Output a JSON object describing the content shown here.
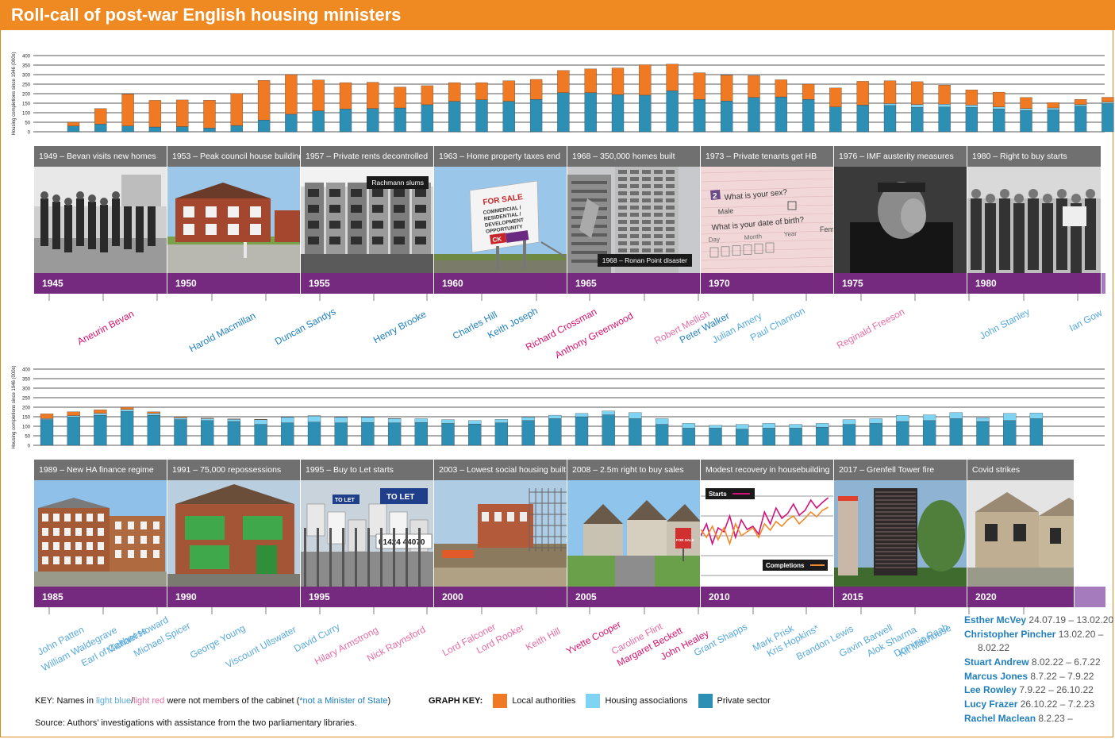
{
  "title": "Roll-call of post-war English housing ministers",
  "colors": {
    "la": "#f07a24",
    "ha": "#7fd3f3",
    "private": "#2e8fb5",
    "purple": "#762a7f",
    "purple_light": "#a67bbd",
    "caption": "#707070",
    "orange": "#ef8a22"
  },
  "ylabel": "Housing completions since 1946 (000s)",
  "chart_data": [
    {
      "type": "bar",
      "stacked": true,
      "ylim": [
        0,
        400
      ],
      "yticks": [
        "0",
        "50",
        "100",
        "150",
        "200",
        "250",
        "300",
        "350",
        "400"
      ],
      "categories": [
        "1946",
        "1947",
        "1948",
        "1949",
        "1950",
        "1951",
        "1952",
        "1953",
        "1954",
        "1955",
        "1956",
        "1957",
        "1958",
        "1959",
        "1960",
        "1961",
        "1962",
        "1963",
        "1964",
        "1965",
        "1966",
        "1967",
        "1968",
        "1969",
        "1970",
        "1971",
        "1972",
        "1973",
        "1974",
        "1975",
        "1976",
        "1977",
        "1978",
        "1979",
        "1980",
        "1981",
        "1982",
        "1983",
        "1984"
      ],
      "series": [
        {
          "name": "Private sector",
          "values": [
            30,
            40,
            30,
            25,
            27,
            20,
            33,
            62,
            92,
            110,
            120,
            122,
            125,
            142,
            160,
            168,
            160,
            170,
            205,
            205,
            195,
            192,
            215,
            170,
            162,
            180,
            183,
            170,
            130,
            140,
            138,
            128,
            130,
            128,
            120,
            112,
            115,
            135,
            148
          ]
        },
        {
          "name": "Housing associations",
          "values": [
            0,
            0,
            0,
            0,
            0,
            0,
            0,
            0,
            0,
            0,
            0,
            0,
            0,
            0,
            0,
            0,
            0,
            0,
            0,
            0,
            0,
            0,
            0,
            0,
            0,
            0,
            0,
            0,
            0,
            0,
            10,
            15,
            15,
            12,
            10,
            10,
            10,
            8,
            8
          ]
        },
        {
          "name": "Local authorities",
          "values": [
            20,
            82,
            168,
            140,
            140,
            146,
            168,
            208,
            208,
            162,
            138,
            138,
            110,
            100,
            98,
            90,
            108,
            105,
            117,
            125,
            140,
            160,
            140,
            140,
            135,
            115,
            90,
            80,
            100,
            125,
            120,
            120,
            100,
            80,
            78,
            58,
            28,
            27,
            25
          ]
        }
      ]
    },
    {
      "type": "bar",
      "stacked": true,
      "ylim": [
        0,
        400
      ],
      "yticks": [
        "0",
        "50",
        "100",
        "150",
        "200",
        "250",
        "300",
        "350",
        "400"
      ],
      "categories": [
        "1985",
        "1986",
        "1987",
        "1988",
        "1989",
        "1990",
        "1991",
        "1992",
        "1993",
        "1994",
        "1995",
        "1996",
        "1997",
        "1998",
        "1999",
        "2000",
        "2001",
        "2002",
        "2003",
        "2004",
        "2005",
        "2006",
        "2007",
        "2008",
        "2009",
        "2010",
        "2011",
        "2012",
        "2013",
        "2014",
        "2015",
        "2016",
        "2017",
        "2018",
        "2019",
        "2020",
        "2021",
        "2022"
      ],
      "series": [
        {
          "name": "Private sector",
          "values": [
            135,
            148,
            158,
            178,
            158,
            135,
            130,
            125,
            110,
            118,
            122,
            118,
            120,
            118,
            120,
            115,
            112,
            118,
            130,
            140,
            150,
            160,
            140,
            110,
            90,
            90,
            85,
            90,
            90,
            95,
            110,
            115,
            125,
            130,
            140,
            125,
            130,
            140
          ]
        },
        {
          "name": "Housing associations",
          "values": [
            5,
            8,
            10,
            10,
            10,
            10,
            10,
            12,
            25,
            30,
            32,
            30,
            28,
            22,
            20,
            20,
            18,
            18,
            18,
            18,
            18,
            20,
            32,
            30,
            25,
            15,
            25,
            25,
            20,
            20,
            25,
            25,
            32,
            30,
            32,
            20,
            38,
            30
          ]
        },
        {
          "name": "Local authorities",
          "values": [
            25,
            20,
            18,
            12,
            8,
            5,
            3,
            2,
            2,
            1,
            1,
            1,
            1,
            1,
            0,
            0,
            0,
            0,
            0,
            0,
            0,
            0,
            0,
            0,
            0,
            0,
            0,
            0,
            0,
            0,
            0,
            0,
            0,
            0,
            0,
            0,
            0,
            0
          ]
        }
      ]
    }
  ],
  "row1": {
    "panels": [
      {
        "caption": "1949 – Bevan visits new homes",
        "year": "1945"
      },
      {
        "caption": "1953 – Peak council house building",
        "year": "1950"
      },
      {
        "caption": "1957 – Private rents decontrolled",
        "year": "1955",
        "tag": "Rachmann slums"
      },
      {
        "caption": "1963 – Home property taxes end",
        "year": "1960",
        "sign": [
          "FOR SALE",
          "COMMERCIAL /",
          "RESIDENTIAL /",
          "DEVELOPMENT",
          "OPPORTUNITY",
          "CK"
        ]
      },
      {
        "caption": "1968 – 350,000 homes built",
        "year": "1965",
        "tag": "1968 – Ronan Point disaster"
      },
      {
        "caption": "1973 – Private tenants get HB",
        "year": "1970",
        "form": [
          "2",
          "What is your sex?",
          "Male",
          "Fema",
          "What is your date of birth?",
          "Day",
          "Month",
          "Year"
        ]
      },
      {
        "caption": "1976 – IMF austerity measures",
        "year": "1975"
      },
      {
        "caption": "1980 – Right to buy starts",
        "year": "1980"
      }
    ],
    "names": [
      {
        "text": "Aneurin Bevan",
        "c": "c-dred"
      },
      {
        "text": "Harold Macmillan",
        "c": "c-dblue"
      },
      {
        "text": "Duncan Sandys",
        "c": "c-dblue"
      },
      {
        "text": "Henry Brooke",
        "c": "c-dblue"
      },
      {
        "text": "Charles Hill",
        "c": "c-dblue"
      },
      {
        "text": "Keith Joseph",
        "c": "c-dblue"
      },
      {
        "text": "Richard Crossman",
        "c": "c-dred"
      },
      {
        "text": "Anthony Greenwood",
        "c": "c-dred"
      },
      {
        "text": "Robert Mellish",
        "c": "c-lred"
      },
      {
        "text": "Peter Walker",
        "c": "c-dblue"
      },
      {
        "text": "Julian Amery",
        "c": "c-lblue"
      },
      {
        "text": "Paul Channon",
        "c": "c-lblue"
      },
      {
        "text": "Reginald Freeson",
        "c": "c-lred"
      },
      {
        "text": "John Stanley",
        "c": "c-lblue"
      },
      {
        "text": "Ian Gow",
        "c": "c-lblue"
      }
    ]
  },
  "row2": {
    "panels": [
      {
        "caption": "1989 – New HA finance regime",
        "year": "1985"
      },
      {
        "caption": "1991 – 75,000 repossessions",
        "year": "1990"
      },
      {
        "caption": "1995 – Buy to Let starts",
        "year": "1995",
        "signs": [
          "TO LET",
          "TO LET",
          "01424 44070"
        ]
      },
      {
        "caption": "2003 – Lowest social housing built",
        "year": "2000"
      },
      {
        "caption": "2008 – 2.5m right to buy sales",
        "year": "2005",
        "sign": "FOR SALE"
      },
      {
        "caption": "Modest recovery in housebuilding",
        "year": "2010",
        "legend_starts": "Starts",
        "legend_completions": "Completions"
      },
      {
        "caption": "2017 – Grenfell Tower fire",
        "year": "2015"
      },
      {
        "caption": "Covid strikes",
        "year": "2020"
      }
    ],
    "names": [
      {
        "text": "John Patten",
        "c": "c-lblue"
      },
      {
        "text": "William Waldegrave",
        "c": "c-lblue"
      },
      {
        "text": "Earl of Caithness",
        "c": "c-lblue"
      },
      {
        "text": "Michael Howard",
        "c": "c-lblue"
      },
      {
        "text": "Michael Spicer",
        "c": "c-lblue"
      },
      {
        "text": "George Young",
        "c": "c-lblue"
      },
      {
        "text": "Viscount Ullswater",
        "c": "c-lblue"
      },
      {
        "text": "David Curry",
        "c": "c-lblue"
      },
      {
        "text": "Hilary Armstrong",
        "c": "c-lred"
      },
      {
        "text": "Nick Raynsford",
        "c": "c-lred"
      },
      {
        "text": "Lord Falconer",
        "c": "c-lred"
      },
      {
        "text": "Lord Rooker",
        "c": "c-lred"
      },
      {
        "text": "Keith Hill",
        "c": "c-lred"
      },
      {
        "text": "Yvette Cooper",
        "c": "c-dred"
      },
      {
        "text": "Caroline Flint",
        "c": "c-lred"
      },
      {
        "text": "Margaret Beckett",
        "c": "c-dred"
      },
      {
        "text": "John Healey",
        "c": "c-dred"
      },
      {
        "text": "Grant Shapps",
        "c": "c-lblue"
      },
      {
        "text": "Mark Prisk",
        "c": "c-lblue"
      },
      {
        "text": "Kris Hopkins*",
        "c": "c-lblue"
      },
      {
        "text": "Brandon Lewis",
        "c": "c-lblue"
      },
      {
        "text": "Gavin Barwell",
        "c": "c-lblue"
      },
      {
        "text": "Alok Sharma",
        "c": "c-lblue"
      },
      {
        "text": "Dominic Raab",
        "c": "c-lblue"
      },
      {
        "text": "Kit Malthouse",
        "c": "c-lblue"
      }
    ]
  },
  "recent_ministers": [
    {
      "name": "Esther McVey",
      "dates": "24.07.19 – 13.02.20"
    },
    {
      "name": "Christopher Pincher",
      "dates": "13.02.20 –"
    },
    {
      "name": "",
      "dates": "8.02.22"
    },
    {
      "name": "Stuart Andrew",
      "dates": "8.02.22 – 6.7.22"
    },
    {
      "name": "Marcus Jones",
      "dates": "8.7.22 – 7.9.22"
    },
    {
      "name": "Lee Rowley",
      "dates": "7.9.22 – 26.10.22"
    },
    {
      "name": "Lucy Frazer",
      "dates": "26.10.22 – 7.2.23"
    },
    {
      "name": "Rachel Maclean",
      "dates": "8.2.23 –"
    }
  ],
  "key": {
    "prefix": "KEY: Names in ",
    "lightblue": "light blue",
    "slash": "/",
    "lightred": "light red",
    "middle": " were not members of the cabinet (",
    "star": "*not a Minister of State",
    "suffix": ")"
  },
  "graph_key": {
    "label": "GRAPH KEY:",
    "la": "Local authorities",
    "ha": "Housing associations",
    "private": "Private sector"
  },
  "source": "Source: Authors’ investigations with assistance from the two parliamentary libraries."
}
